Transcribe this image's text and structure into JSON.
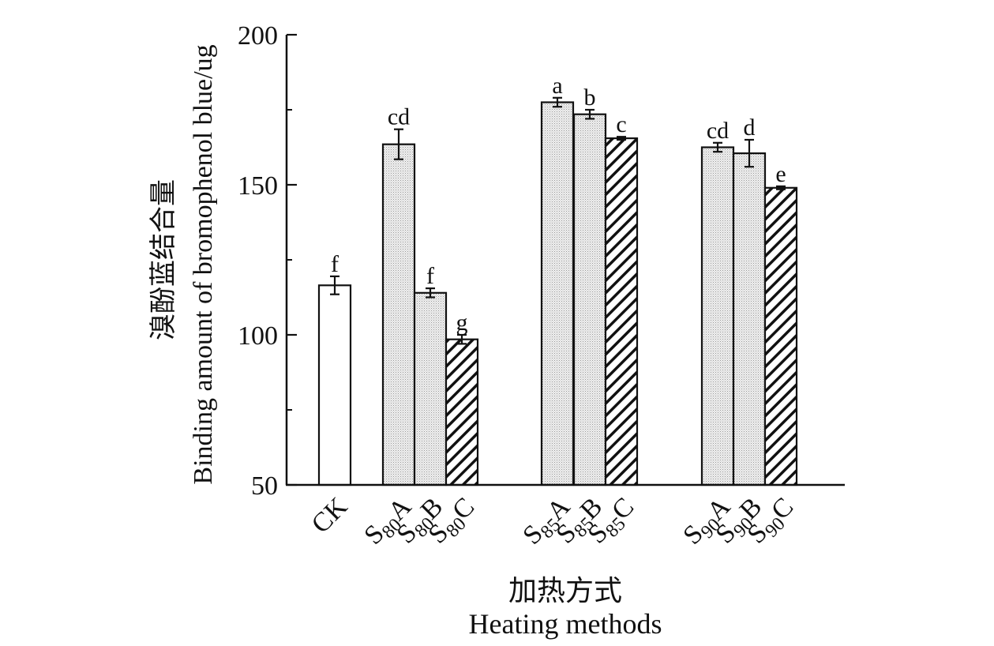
{
  "chart_data": {
    "type": "bar",
    "ylabel_cn": "溴酚蓝结合量",
    "ylabel_en": "Binding amount of bromophenol blue/ug",
    "xlabel_cn": "加热方式",
    "xlabel_en": "Heating methods",
    "ylim": [
      50,
      200
    ],
    "yticks": [
      50,
      100,
      150,
      200
    ],
    "categories": [
      {
        "label": "CK",
        "base": "CK",
        "sub": "",
        "suffix": "",
        "value": 116.5,
        "err": 3.0,
        "sig": "f",
        "pattern": "none",
        "group": 0
      },
      {
        "label": "S80A",
        "base": "S",
        "sub": "80",
        "suffix": "A",
        "value": 163.5,
        "err": 5.0,
        "sig": "cd",
        "pattern": "dots",
        "group": 1
      },
      {
        "label": "S80B",
        "base": "S",
        "sub": "80",
        "suffix": "B",
        "value": 114.0,
        "err": 1.5,
        "sig": "f",
        "pattern": "dots",
        "group": 1
      },
      {
        "label": "S80C",
        "base": "S",
        "sub": "80",
        "suffix": "C",
        "value": 98.5,
        "err": 1.5,
        "sig": "g",
        "pattern": "hatch",
        "group": 1
      },
      {
        "label": "S85A",
        "base": "S",
        "sub": "85",
        "suffix": "A",
        "value": 177.5,
        "err": 1.5,
        "sig": "a",
        "pattern": "dots",
        "group": 2
      },
      {
        "label": "S85B",
        "base": "S",
        "sub": "85",
        "suffix": "B",
        "value": 173.5,
        "err": 1.5,
        "sig": "b",
        "pattern": "dots",
        "group": 2
      },
      {
        "label": "S85C",
        "base": "S",
        "sub": "85",
        "suffix": "C",
        "value": 165.5,
        "err": 0.5,
        "sig": "c",
        "pattern": "hatch",
        "group": 2
      },
      {
        "label": "S90A",
        "base": "S",
        "sub": "90",
        "suffix": "A",
        "value": 162.5,
        "err": 1.5,
        "sig": "cd",
        "pattern": "dots",
        "group": 3
      },
      {
        "label": "S90B",
        "base": "S",
        "sub": "90",
        "suffix": "B",
        "value": 160.5,
        "err": 4.5,
        "sig": "d",
        "pattern": "dots",
        "group": 3
      },
      {
        "label": "S90C",
        "base": "S",
        "sub": "90",
        "suffix": "C",
        "value": 149.0,
        "err": 0.5,
        "sig": "e",
        "pattern": "hatch",
        "group": 3
      }
    ]
  }
}
